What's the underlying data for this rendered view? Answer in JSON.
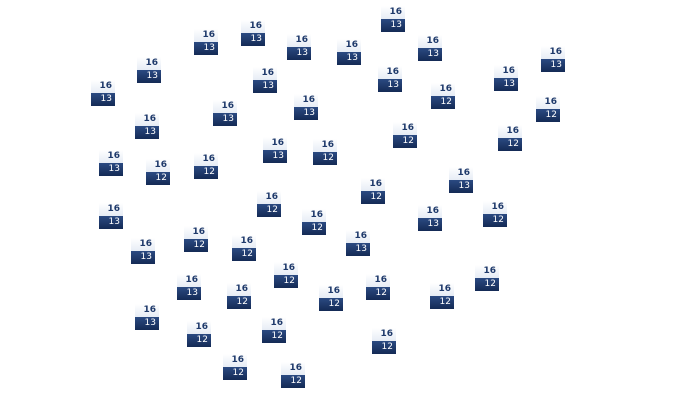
{
  "colors": {
    "marker_top": "#eef2f8",
    "marker_top_text": "#1f3a6b",
    "marker_bottom": "#1d3566",
    "marker_bottom_text": "#ffffff"
  },
  "markers": [
    {
      "top": "16",
      "bottom": "13"
    },
    {
      "top": "16",
      "bottom": "13"
    },
    {
      "top": "16",
      "bottom": "13"
    },
    {
      "top": "16",
      "bottom": "13"
    },
    {
      "top": "16",
      "bottom": "13"
    },
    {
      "top": "16",
      "bottom": "13"
    },
    {
      "top": "16",
      "bottom": "13"
    },
    {
      "top": "16",
      "bottom": "13"
    },
    {
      "top": "16",
      "bottom": "13"
    },
    {
      "top": "16",
      "bottom": "13"
    },
    {
      "top": "16",
      "bottom": "13"
    },
    {
      "top": "16",
      "bottom": "13"
    },
    {
      "top": "16",
      "bottom": "12"
    },
    {
      "top": "16",
      "bottom": "12"
    },
    {
      "top": "16",
      "bottom": "13"
    },
    {
      "top": "16",
      "bottom": "13"
    },
    {
      "top": "16",
      "bottom": "13"
    },
    {
      "top": "16",
      "bottom": "12"
    },
    {
      "top": "16",
      "bottom": "12"
    },
    {
      "top": "16",
      "bottom": "13"
    },
    {
      "top": "16",
      "bottom": "12"
    },
    {
      "top": "16",
      "bottom": "13"
    },
    {
      "top": "16",
      "bottom": "12"
    },
    {
      "top": "16",
      "bottom": "12"
    },
    {
      "top": "16",
      "bottom": "13"
    },
    {
      "top": "16",
      "bottom": "12"
    },
    {
      "top": "16",
      "bottom": "12"
    },
    {
      "top": "16",
      "bottom": "12"
    },
    {
      "top": "16",
      "bottom": "13"
    },
    {
      "top": "16",
      "bottom": "12"
    },
    {
      "top": "16",
      "bottom": "13"
    },
    {
      "top": "16",
      "bottom": "12"
    },
    {
      "top": "16",
      "bottom": "13"
    },
    {
      "top": "16",
      "bottom": "12"
    },
    {
      "top": "16",
      "bottom": "13"
    },
    {
      "top": "16",
      "bottom": "12"
    },
    {
      "top": "16",
      "bottom": "12"
    },
    {
      "top": "16",
      "bottom": "13"
    },
    {
      "top": "16",
      "bottom": "12"
    },
    {
      "top": "16",
      "bottom": "12"
    },
    {
      "top": "16",
      "bottom": "12"
    },
    {
      "top": "16",
      "bottom": "12"
    },
    {
      "top": "16",
      "bottom": "13"
    },
    {
      "top": "16",
      "bottom": "12"
    },
    {
      "top": "16",
      "bottom": "12"
    },
    {
      "top": "16",
      "bottom": "12"
    },
    {
      "top": "16",
      "bottom": "12"
    },
    {
      "top": "16",
      "bottom": "12"
    }
  ]
}
